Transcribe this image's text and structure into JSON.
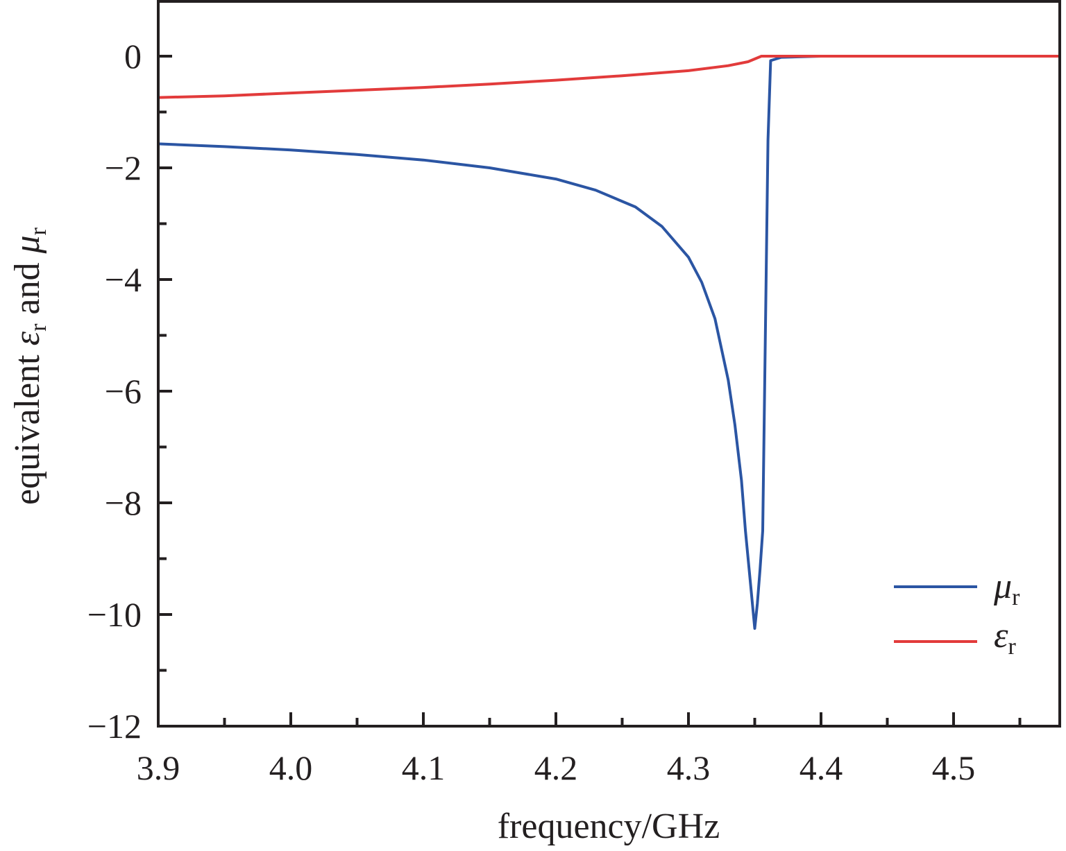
{
  "chart_data": {
    "type": "line",
    "xlabel": "frequency/GHz",
    "ylabel": "equivalent ε r and μ r",
    "ylabel_parts": {
      "prefix": "equivalent ",
      "eps_symbol": "ε",
      "eps_sub": "r",
      "middle": " and ",
      "mu_symbol": "μ",
      "mu_sub": "r"
    },
    "xlim": [
      3.9,
      4.58
    ],
    "ylim": [
      -12,
      1
    ],
    "x_ticks": [
      3.9,
      4.0,
      4.1,
      4.2,
      4.3,
      4.4,
      4.5
    ],
    "x_tick_labels": [
      "3.9",
      "4.0",
      "4.1",
      "4.2",
      "4.3",
      "4.4",
      "4.5"
    ],
    "y_ticks": [
      0,
      -2,
      -4,
      -6,
      -8,
      -10,
      -12
    ],
    "y_tick_labels": [
      "0",
      "−2",
      "−4",
      "−6",
      "−8",
      "−10",
      "−12"
    ],
    "grid": false,
    "legend_position": "bottom-right",
    "series": [
      {
        "name": "μ r",
        "symbol": "μ",
        "sub": "r",
        "color": "#2b55a3",
        "x": [
          3.9,
          3.95,
          4.0,
          4.05,
          4.1,
          4.15,
          4.2,
          4.23,
          4.26,
          4.28,
          4.3,
          4.31,
          4.32,
          4.33,
          4.335,
          4.34,
          4.343,
          4.347,
          4.35,
          4.352,
          4.354,
          4.356,
          4.358,
          4.36,
          4.362,
          4.37,
          4.4,
          4.45,
          4.5,
          4.55,
          4.58
        ],
        "y": [
          -1.57,
          -1.62,
          -1.68,
          -1.76,
          -1.86,
          -2.0,
          -2.2,
          -2.4,
          -2.7,
          -3.05,
          -3.6,
          -4.05,
          -4.7,
          -5.8,
          -6.6,
          -7.6,
          -8.5,
          -9.5,
          -10.25,
          -9.8,
          -9.2,
          -8.5,
          -5.0,
          -1.5,
          -0.08,
          -0.02,
          0.0,
          0.0,
          0.0,
          0.0,
          0.0
        ]
      },
      {
        "name": "ε r",
        "symbol": "ε",
        "sub": "r",
        "color": "#e23b3b",
        "x": [
          3.9,
          3.95,
          4.0,
          4.05,
          4.1,
          4.15,
          4.2,
          4.25,
          4.3,
          4.33,
          4.345,
          4.35,
          4.355,
          4.36,
          4.4,
          4.45,
          4.5,
          4.55,
          4.58
        ],
        "y": [
          -0.74,
          -0.71,
          -0.66,
          -0.61,
          -0.56,
          -0.5,
          -0.43,
          -0.35,
          -0.26,
          -0.17,
          -0.1,
          -0.05,
          0.0,
          0.0,
          0.0,
          0.0,
          0.0,
          0.0,
          0.0
        ]
      }
    ]
  }
}
